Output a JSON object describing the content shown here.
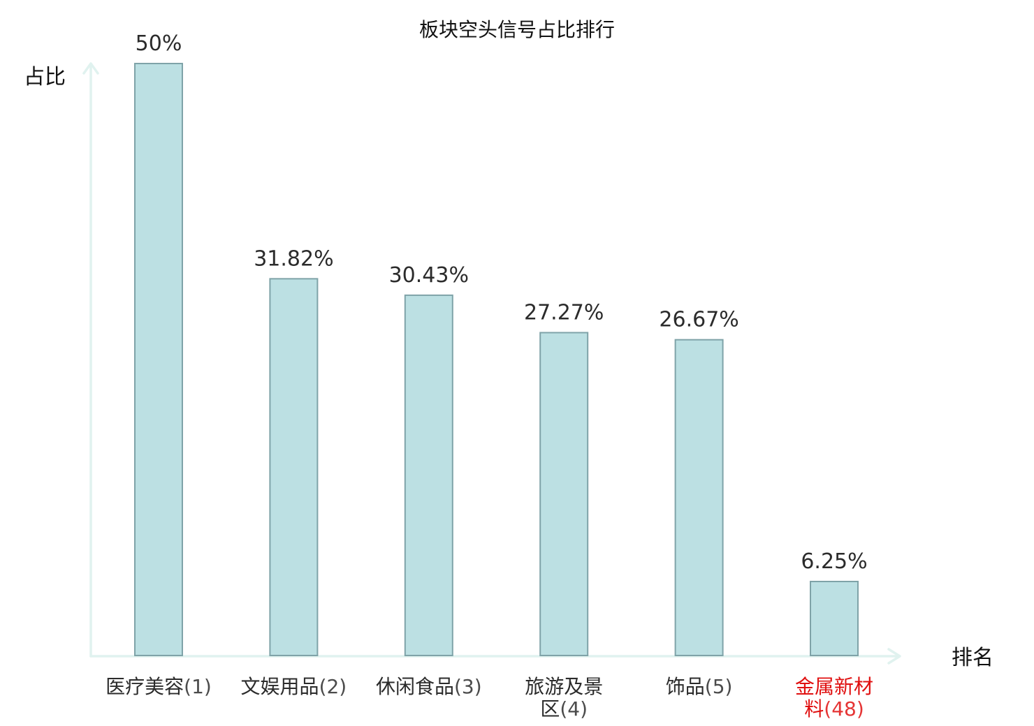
{
  "chart_data": {
    "type": "bar",
    "title": "板块空头信号占比排行",
    "ylabel": "占比",
    "xlabel": "排名",
    "categories": [
      {
        "name": "医疗美容",
        "rank": "(1)",
        "highlight": false
      },
      {
        "name": "文娱用品",
        "rank": "(2)",
        "highlight": false
      },
      {
        "name": "休闲食品",
        "rank": "(3)",
        "highlight": false
      },
      {
        "name": "旅游及景区",
        "rank": "(4)",
        "highlight": false
      },
      {
        "name": "饰品",
        "rank": "(5)",
        "highlight": false
      },
      {
        "name": "金属新材料",
        "rank": "(48)",
        "highlight": true
      }
    ],
    "values": [
      50,
      31.82,
      30.43,
      27.27,
      26.67,
      6.25
    ],
    "value_labels": [
      "50%",
      "31.82%",
      "30.43%",
      "27.27%",
      "26.67%",
      "6.25%"
    ],
    "ylim": [
      0,
      50
    ],
    "grid": false,
    "colors": {
      "bar_fill": "#bce0e3",
      "bar_stroke": "#7fa3a8",
      "axis": "#e0f2ef",
      "text": "#2b2b2b",
      "highlight": "#e01010"
    }
  }
}
